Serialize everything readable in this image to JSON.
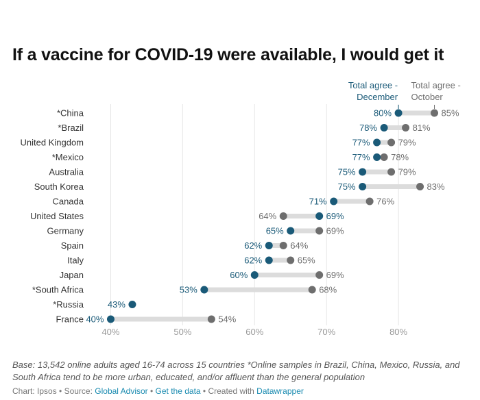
{
  "title": "If a vaccine for COVID-19 were available, I would get it",
  "notes": "Base: 13,542 online adults aged 16-74 across 15 countries *Online samples in Brazil, China, Mexico, Russia, and South Africa tend to be more urban, educated, and/or affluent than the general population",
  "footer": {
    "chart_label": "Chart: Ipsos",
    "sep1": " • ",
    "source_prefix": "Source: ",
    "source_link": "Global Advisor",
    "sep2": " • ",
    "data_link": "Get the data",
    "sep3": " • ",
    "created_prefix": "Created with ",
    "created_link": "Datawrapper"
  },
  "colors": {
    "december": "#1a5a78",
    "october": "#6e6e6e",
    "range_bar": "#dcdcdc",
    "grid": "#e6e6e6",
    "axis_text": "#999999",
    "label_text": "#333333"
  },
  "chart_data": {
    "type": "dot-range",
    "title": "If a vaccine for COVID-19 were available, I would get it",
    "categories": [
      "*China",
      "*Brazil",
      "United Kingdom",
      "*Mexico",
      "Australia",
      "South Korea",
      "Canada",
      "United States",
      "Germany",
      "Spain",
      "Italy",
      "Japan",
      "*South Africa",
      "*Russia",
      "France"
    ],
    "series": [
      {
        "name": "Total agree - December",
        "legend_lines": [
          "Total agree -",
          "December"
        ],
        "values": [
          80,
          78,
          77,
          77,
          75,
          75,
          71,
          69,
          65,
          62,
          62,
          60,
          53,
          43,
          40
        ]
      },
      {
        "name": "Total agree - October",
        "legend_lines": [
          "Total agree -",
          "October"
        ],
        "values": [
          85,
          81,
          79,
          78,
          79,
          83,
          76,
          64,
          69,
          64,
          65,
          69,
          68,
          null,
          54
        ]
      }
    ],
    "value_suffix": "%",
    "xlim": [
      37,
      88
    ],
    "xticks": [
      40,
      50,
      60,
      70,
      80
    ],
    "xtick_labels": [
      "40%",
      "50%",
      "60%",
      "70%",
      "80%"
    ],
    "xlabel": "",
    "ylabel": ""
  }
}
